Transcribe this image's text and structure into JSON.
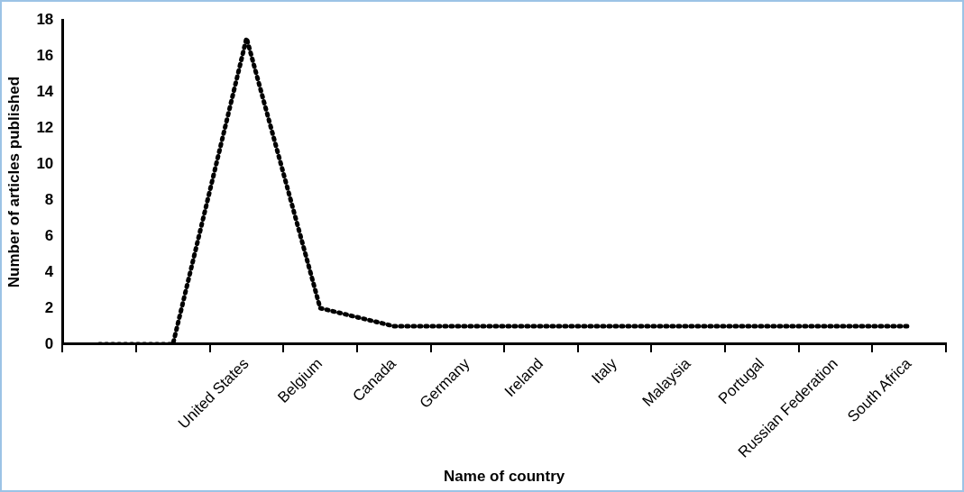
{
  "chart_data": {
    "type": "line",
    "xlabel": "Name of country",
    "ylabel": "Number of articles published",
    "categories": [
      null,
      null,
      "United States",
      "Belgium",
      "Canada",
      "Germany",
      "Ireland",
      "Italy",
      "Malaysia",
      "Portugal",
      "Russian Federation",
      "South Africa"
    ],
    "series": [
      {
        "color": "#000000",
        "values": [
          0,
          0,
          17,
          2,
          1,
          1,
          1,
          1,
          1,
          1,
          1,
          1
        ]
      }
    ],
    "ylim": [
      0,
      18
    ],
    "yticks": [
      0,
      2,
      4,
      6,
      8,
      10,
      12,
      14,
      16,
      18
    ],
    "grid": false,
    "legend": false,
    "marker": "none",
    "line_style": "dotted"
  }
}
